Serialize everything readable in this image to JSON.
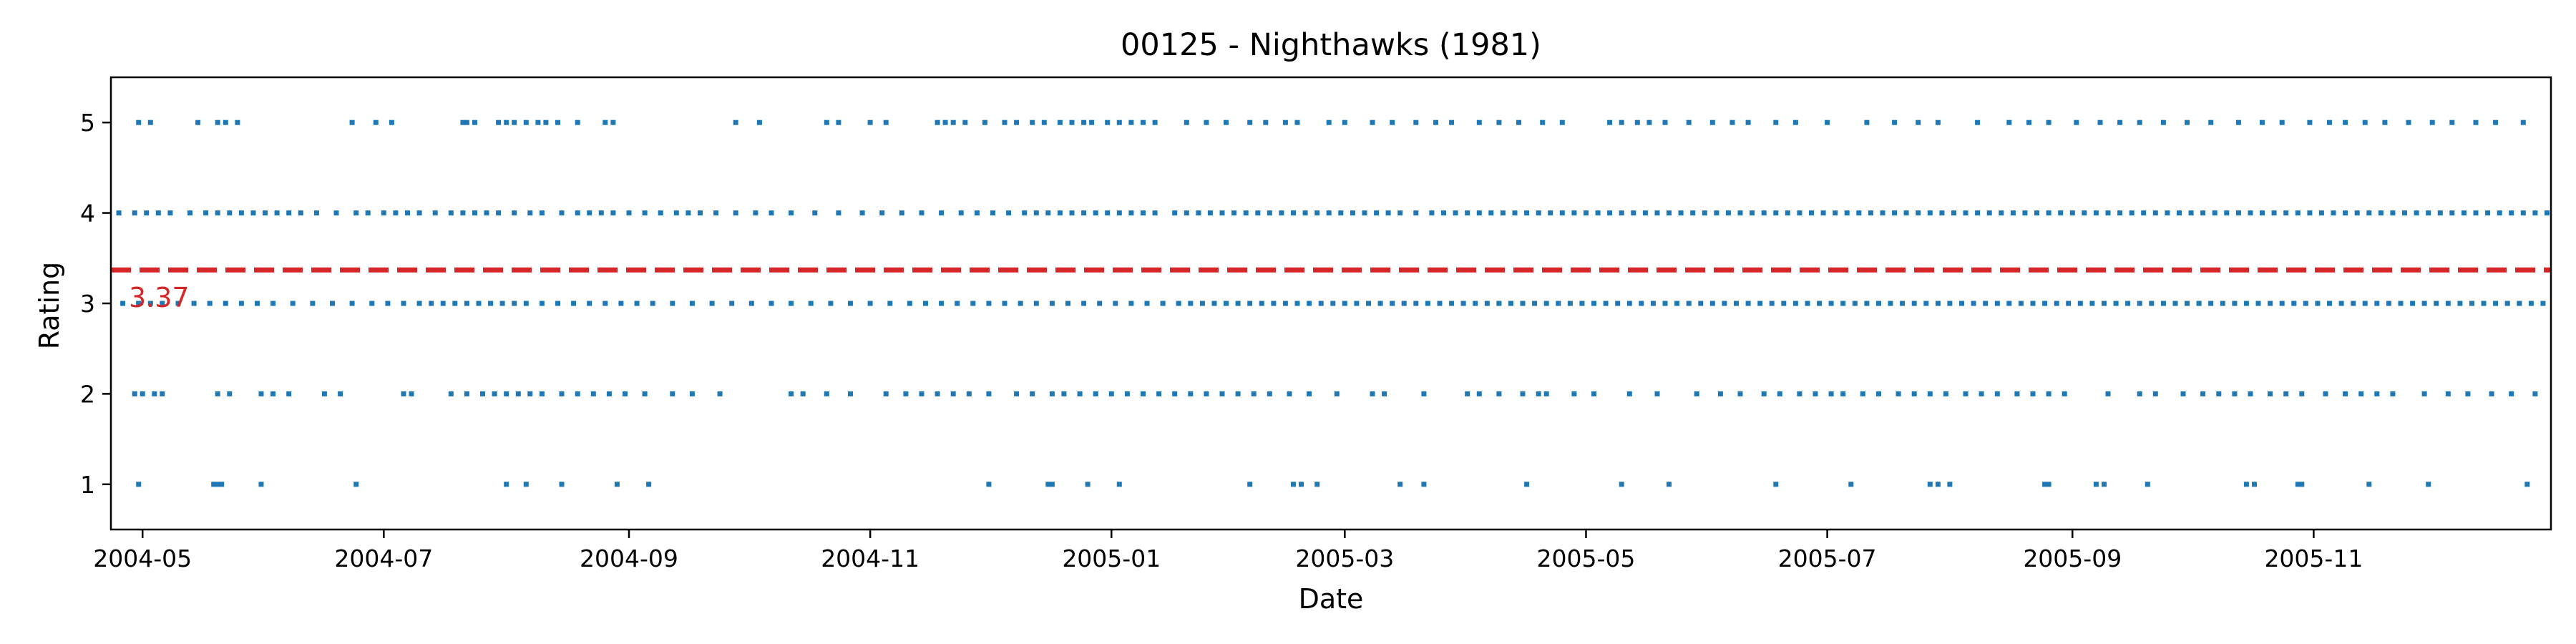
{
  "chart_data": {
    "type": "scatter",
    "title": "00125 - Nighthawks (1981)",
    "xlabel": "Date",
    "ylabel": "Rating",
    "x_range": [
      "2004-04-23",
      "2005-12-31"
    ],
    "ylim": [
      0.5,
      5.5
    ],
    "x_ticks": [
      "2004-05",
      "2004-07",
      "2004-09",
      "2004-11",
      "2005-01",
      "2005-03",
      "2005-05",
      "2005-07",
      "2005-09",
      "2005-11"
    ],
    "y_ticks": [
      1,
      2,
      3,
      4,
      5
    ],
    "grid": false,
    "series_color": "#1f77b4",
    "mean": {
      "value": 3.37,
      "label": "3.37",
      "color": "#d62728",
      "style": "dashed"
    },
    "series": [
      {
        "points": [
          {
            "rating": 5,
            "dates": [
              "2004-04-30",
              "2004-05-03",
              "2004-05-15",
              "2004-05-20",
              "2004-05-22",
              "2004-05-25",
              "2004-06-23",
              "2004-06-29",
              "2004-07-03",
              "2004-07-21",
              "2004-07-22",
              "2004-07-24",
              "2004-07-30",
              "2004-08-01",
              "2004-08-03",
              "2004-08-06",
              "2004-08-09",
              "2004-08-11",
              "2004-08-14",
              "2004-08-19",
              "2004-08-26",
              "2004-08-28",
              "2004-09-28",
              "2004-10-04",
              "2004-10-21",
              "2004-10-24",
              "2004-11-01",
              "2004-11-05",
              "2004-11-18",
              "2004-11-20",
              "2004-11-22",
              "2004-11-25",
              "2004-11-30",
              "2004-12-05",
              "2004-12-08",
              "2004-12-12",
              "2004-12-15",
              "2004-12-19",
              "2004-12-22",
              "2004-12-25",
              "2004-12-27",
              "2004-12-31",
              "2005-01-03",
              "2005-01-06",
              "2005-01-09",
              "2005-01-12",
              "2005-01-20",
              "2005-01-25",
              "2005-01-30",
              "2005-02-05",
              "2005-02-09",
              "2005-02-14",
              "2005-02-17",
              "2005-02-25",
              "2005-03-01",
              "2005-03-08",
              "2005-03-13",
              "2005-03-19",
              "2005-03-24",
              "2005-03-28",
              "2005-04-04",
              "2005-04-09",
              "2005-04-14",
              "2005-04-20",
              "2005-04-25",
              "2005-05-07",
              "2005-05-10",
              "2005-05-14",
              "2005-05-17",
              "2005-05-21",
              "2005-05-27",
              "2005-06-02",
              "2005-06-07",
              "2005-06-11",
              "2005-06-18",
              "2005-06-23",
              "2005-07-01",
              "2005-07-11",
              "2005-07-18",
              "2005-07-24",
              "2005-07-29",
              "2005-08-08",
              "2005-08-16",
              "2005-08-21",
              "2005-08-26",
              "2005-09-02",
              "2005-09-08",
              "2005-09-13",
              "2005-09-18",
              "2005-09-24",
              "2005-09-30",
              "2005-10-06",
              "2005-10-13",
              "2005-10-19",
              "2005-10-24",
              "2005-10-31",
              "2005-11-05",
              "2005-11-09",
              "2005-11-14",
              "2005-11-19",
              "2005-11-25",
              "2005-12-01",
              "2005-12-06",
              "2005-12-12",
              "2005-12-17",
              "2005-12-24"
            ]
          },
          {
            "rating": 4,
            "dates": [
              "2004-04-25",
              "2004-04-29",
              "2004-05-02",
              "2004-05-05",
              "2004-05-08",
              "2004-05-13",
              "2004-05-17",
              "2004-05-20",
              "2004-05-23",
              "2004-05-26",
              "2004-05-29",
              "2004-06-01",
              "2004-06-04",
              "2004-06-07",
              "2004-06-10",
              "2004-06-14",
              "2004-06-19",
              "2004-06-24",
              "2004-06-27",
              "2004-07-01",
              "2004-07-04",
              "2004-07-07",
              "2004-07-10",
              "2004-07-14",
              "2004-07-18",
              "2004-07-21",
              "2004-07-24",
              "2004-07-27",
              "2004-07-30",
              "2004-08-03",
              "2004-08-07",
              "2004-08-10",
              "2004-08-15",
              "2004-08-19",
              "2004-08-22",
              "2004-08-25",
              "2004-08-28",
              "2004-09-01",
              "2004-09-05",
              "2004-09-09",
              "2004-09-13",
              "2004-09-16",
              "2004-09-19",
              "2004-09-23",
              "2004-09-28",
              "2004-10-03",
              "2004-10-07",
              "2004-10-12",
              "2004-10-18",
              "2004-10-24",
              "2004-10-30",
              "2004-11-04",
              "2004-11-09",
              "2004-11-14",
              "2004-11-19",
              "2004-11-24",
              "2004-11-28",
              "2004-12-02",
              "2004-12-06",
              "2004-12-10",
              "2004-12-13",
              "2004-12-16",
              "2004-12-19",
              "2004-12-22",
              "2004-12-25",
              "2004-12-28",
              "2004-12-31",
              "2005-01-03",
              "2005-01-06",
              "2005-01-09",
              "2005-01-12",
              "2005-01-17",
              "2005-01-20",
              "2005-01-23",
              "2005-01-26",
              "2005-01-29",
              "2005-02-01",
              "2005-02-04",
              "2005-02-07",
              "2005-02-10",
              "2005-02-13",
              "2005-02-16",
              "2005-02-19",
              "2005-02-22",
              "2005-02-25",
              "2005-02-28",
              "2005-03-03",
              "2005-03-06",
              "2005-03-09",
              "2005-03-12",
              "2005-03-15",
              "2005-03-19",
              "2005-03-23",
              "2005-03-26",
              "2005-03-29",
              "2005-04-01",
              "2005-04-04",
              "2005-04-07",
              "2005-04-10",
              "2005-04-13",
              "2005-04-16",
              "2005-04-19",
              "2005-04-22",
              "2005-04-25",
              "2005-04-28",
              "2005-05-01",
              "2005-05-04",
              "2005-05-07",
              "2005-05-10",
              "2005-05-13",
              "2005-05-16",
              "2005-05-19",
              "2005-05-22",
              "2005-05-25",
              "2005-05-28",
              "2005-05-31",
              "2005-06-03",
              "2005-06-06",
              "2005-06-09",
              "2005-06-12",
              "2005-06-15",
              "2005-06-18",
              "2005-06-21",
              "2005-06-24",
              "2005-06-27",
              "2005-06-30",
              "2005-07-03",
              "2005-07-06",
              "2005-07-09",
              "2005-07-12",
              "2005-07-15",
              "2005-07-18",
              "2005-07-21",
              "2005-07-24",
              "2005-07-27",
              "2005-07-30",
              "2005-08-02",
              "2005-08-05",
              "2005-08-08",
              "2005-08-11",
              "2005-08-14",
              "2005-08-17",
              "2005-08-20",
              "2005-08-23",
              "2005-08-26",
              "2005-08-29",
              "2005-09-01",
              "2005-09-04",
              "2005-09-07",
              "2005-09-10",
              "2005-09-13",
              "2005-09-16",
              "2005-09-19",
              "2005-09-22",
              "2005-09-25",
              "2005-09-28",
              "2005-10-01",
              "2005-10-04",
              "2005-10-07",
              "2005-10-10",
              "2005-10-13",
              "2005-10-16",
              "2005-10-19",
              "2005-10-22",
              "2005-10-25",
              "2005-10-28",
              "2005-10-31",
              "2005-11-03",
              "2005-11-06",
              "2005-11-09",
              "2005-11-12",
              "2005-11-15",
              "2005-11-18",
              "2005-11-21",
              "2005-11-24",
              "2005-11-27",
              "2005-11-30",
              "2005-12-03",
              "2005-12-06",
              "2005-12-09",
              "2005-12-12",
              "2005-12-15",
              "2005-12-18",
              "2005-12-21",
              "2005-12-24",
              "2005-12-27",
              "2005-12-30"
            ]
          },
          {
            "rating": 3,
            "dates": [
              "2004-04-26",
              "2004-04-30",
              "2004-05-03",
              "2004-05-06",
              "2004-05-10",
              "2004-05-14",
              "2004-05-18",
              "2004-05-22",
              "2004-05-26",
              "2004-05-30",
              "2004-06-03",
              "2004-06-08",
              "2004-06-13",
              "2004-06-18",
              "2004-06-23",
              "2004-06-28",
              "2004-07-02",
              "2004-07-06",
              "2004-07-10",
              "2004-07-13",
              "2004-07-16",
              "2004-07-19",
              "2004-07-22",
              "2004-07-25",
              "2004-07-28",
              "2004-07-31",
              "2004-08-03",
              "2004-08-06",
              "2004-08-10",
              "2004-08-14",
              "2004-08-18",
              "2004-08-22",
              "2004-08-26",
              "2004-08-30",
              "2004-09-03",
              "2004-09-07",
              "2004-09-12",
              "2004-09-17",
              "2004-09-22",
              "2004-09-27",
              "2004-10-02",
              "2004-10-07",
              "2004-10-12",
              "2004-10-17",
              "2004-10-22",
              "2004-10-27",
              "2004-11-01",
              "2004-11-06",
              "2004-11-11",
              "2004-11-15",
              "2004-11-19",
              "2004-11-23",
              "2004-11-27",
              "2004-12-01",
              "2004-12-05",
              "2004-12-09",
              "2004-12-13",
              "2004-12-17",
              "2004-12-21",
              "2004-12-25",
              "2004-12-29",
              "2005-01-02",
              "2005-01-06",
              "2005-01-10",
              "2005-01-14",
              "2005-01-18",
              "2005-01-21",
              "2005-01-24",
              "2005-01-27",
              "2005-01-30",
              "2005-02-02",
              "2005-02-05",
              "2005-02-08",
              "2005-02-11",
              "2005-02-14",
              "2005-02-17",
              "2005-02-20",
              "2005-02-23",
              "2005-02-26",
              "2005-03-01",
              "2005-03-04",
              "2005-03-07",
              "2005-03-10",
              "2005-03-13",
              "2005-03-16",
              "2005-03-19",
              "2005-03-22",
              "2005-03-25",
              "2005-03-28",
              "2005-03-31",
              "2005-04-03",
              "2005-04-06",
              "2005-04-09",
              "2005-04-12",
              "2005-04-15",
              "2005-04-18",
              "2005-04-21",
              "2005-04-24",
              "2005-04-27",
              "2005-04-30",
              "2005-05-03",
              "2005-05-06",
              "2005-05-09",
              "2005-05-12",
              "2005-05-15",
              "2005-05-18",
              "2005-05-21",
              "2005-05-24",
              "2005-05-27",
              "2005-05-30",
              "2005-06-02",
              "2005-06-05",
              "2005-06-08",
              "2005-06-11",
              "2005-06-14",
              "2005-06-17",
              "2005-06-20",
              "2005-06-23",
              "2005-06-26",
              "2005-06-29",
              "2005-07-02",
              "2005-07-05",
              "2005-07-08",
              "2005-07-11",
              "2005-07-14",
              "2005-07-17",
              "2005-07-20",
              "2005-07-23",
              "2005-07-26",
              "2005-07-29",
              "2005-08-01",
              "2005-08-04",
              "2005-08-07",
              "2005-08-10",
              "2005-08-13",
              "2005-08-16",
              "2005-08-19",
              "2005-08-22",
              "2005-08-25",
              "2005-08-28",
              "2005-08-31",
              "2005-09-03",
              "2005-09-06",
              "2005-09-09",
              "2005-09-12",
              "2005-09-15",
              "2005-09-18",
              "2005-09-21",
              "2005-09-24",
              "2005-09-27",
              "2005-09-30",
              "2005-10-03",
              "2005-10-06",
              "2005-10-09",
              "2005-10-12",
              "2005-10-15",
              "2005-10-18",
              "2005-10-21",
              "2005-10-24",
              "2005-10-27",
              "2005-10-30",
              "2005-11-02",
              "2005-11-05",
              "2005-11-08",
              "2005-11-11",
              "2005-11-14",
              "2005-11-17",
              "2005-11-20",
              "2005-11-23",
              "2005-11-26",
              "2005-11-29",
              "2005-12-02",
              "2005-12-05",
              "2005-12-08",
              "2005-12-11",
              "2005-12-14",
              "2005-12-17",
              "2005-12-20",
              "2005-12-23",
              "2005-12-26",
              "2005-12-29"
            ]
          },
          {
            "rating": 2,
            "dates": [
              "2004-04-29",
              "2004-05-01",
              "2004-05-04",
              "2004-05-06",
              "2004-05-20",
              "2004-05-23",
              "2004-05-31",
              "2004-06-03",
              "2004-06-07",
              "2004-06-16",
              "2004-06-20",
              "2004-07-06",
              "2004-07-08",
              "2004-07-18",
              "2004-07-22",
              "2004-07-26",
              "2004-07-29",
              "2004-08-01",
              "2004-08-04",
              "2004-08-07",
              "2004-08-10",
              "2004-08-15",
              "2004-08-19",
              "2004-08-23",
              "2004-08-27",
              "2004-08-31",
              "2004-09-05",
              "2004-09-12",
              "2004-09-17",
              "2004-09-24",
              "2004-10-12",
              "2004-10-15",
              "2004-10-21",
              "2004-10-27",
              "2004-11-05",
              "2004-11-10",
              "2004-11-14",
              "2004-11-18",
              "2004-11-22",
              "2004-11-26",
              "2004-12-01",
              "2004-12-08",
              "2004-12-12",
              "2004-12-17",
              "2004-12-20",
              "2004-12-24",
              "2004-12-28",
              "2005-01-01",
              "2005-01-05",
              "2005-01-09",
              "2005-01-13",
              "2005-01-17",
              "2005-01-21",
              "2005-01-25",
              "2005-01-29",
              "2005-02-02",
              "2005-02-06",
              "2005-02-10",
              "2005-02-15",
              "2005-02-20",
              "2005-02-27",
              "2005-03-08",
              "2005-03-11",
              "2005-03-21",
              "2005-04-01",
              "2005-04-04",
              "2005-04-09",
              "2005-04-15",
              "2005-04-19",
              "2005-04-21",
              "2005-04-28",
              "2005-05-03",
              "2005-05-12",
              "2005-05-19",
              "2005-05-29",
              "2005-06-04",
              "2005-06-09",
              "2005-06-15",
              "2005-06-19",
              "2005-06-24",
              "2005-06-28",
              "2005-07-02",
              "2005-07-05",
              "2005-07-10",
              "2005-07-14",
              "2005-07-19",
              "2005-07-23",
              "2005-07-27",
              "2005-07-31",
              "2005-08-05",
              "2005-08-09",
              "2005-08-13",
              "2005-08-18",
              "2005-08-22",
              "2005-08-26",
              "2005-08-30",
              "2005-09-10",
              "2005-09-18",
              "2005-09-22",
              "2005-09-29",
              "2005-10-04",
              "2005-10-08",
              "2005-10-12",
              "2005-10-16",
              "2005-10-21",
              "2005-10-25",
              "2005-10-29",
              "2005-11-04",
              "2005-11-09",
              "2005-11-13",
              "2005-11-17",
              "2005-11-21",
              "2005-11-29",
              "2005-12-05",
              "2005-12-10",
              "2005-12-16",
              "2005-12-21",
              "2005-12-27"
            ]
          },
          {
            "rating": 1,
            "dates": [
              "2004-04-30",
              "2004-05-19",
              "2004-05-20",
              "2004-05-21",
              "2004-05-31",
              "2004-06-24",
              "2004-08-01",
              "2004-08-06",
              "2004-08-15",
              "2004-08-29",
              "2004-09-06",
              "2004-12-01",
              "2004-12-16",
              "2004-12-17",
              "2004-12-26",
              "2005-01-03",
              "2005-02-05",
              "2005-02-16",
              "2005-02-18",
              "2005-02-22",
              "2005-03-15",
              "2005-03-21",
              "2005-04-16",
              "2005-05-10",
              "2005-05-22",
              "2005-06-18",
              "2005-07-07",
              "2005-07-27",
              "2005-07-29",
              "2005-08-01",
              "2005-08-25",
              "2005-08-26",
              "2005-09-07",
              "2005-09-09",
              "2005-09-20",
              "2005-10-15",
              "2005-10-17",
              "2005-10-28",
              "2005-10-29",
              "2005-11-15",
              "2005-11-30",
              "2005-12-25"
            ]
          }
        ]
      }
    ]
  }
}
